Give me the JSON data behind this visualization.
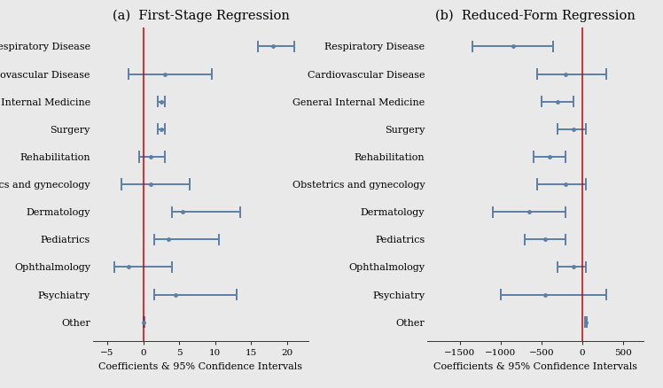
{
  "categories": [
    "Respiratory Disease",
    "Cardiovascular Disease",
    "General Internal Medicine",
    "Surgery",
    "Rehabilitation",
    "Obstetrics and gynecology",
    "Dermatology",
    "Pediatrics",
    "Ophthalmology",
    "Psychiatry",
    "Other"
  ],
  "panel_a": {
    "title": "(a)  First-Stage Regression",
    "xlabel": "Coefficients & 95% Confidence Intervals",
    "xlim": [
      -7,
      23
    ],
    "xticks": [
      -5,
      0,
      5,
      10,
      15,
      20
    ],
    "vline": 0,
    "coefs": [
      18.0,
      3.0,
      2.5,
      2.5,
      1.0,
      1.0,
      5.5,
      3.5,
      -2.0,
      4.5,
      0.1
    ],
    "ci_lo": [
      16.0,
      -2.0,
      2.0,
      2.0,
      -0.5,
      -3.0,
      4.0,
      1.5,
      -4.0,
      1.5,
      0.05
    ],
    "ci_hi": [
      21.0,
      9.5,
      3.0,
      3.0,
      3.0,
      6.5,
      13.5,
      10.5,
      4.0,
      13.0,
      0.15
    ]
  },
  "panel_b": {
    "title": "(b)  Reduced-Form Regression",
    "xlabel": "Coefficients & 95% Confidence Intervals",
    "xlim": [
      -1900,
      750
    ],
    "xticks": [
      -1500,
      -1000,
      -500,
      0,
      500
    ],
    "vline": 0,
    "coefs": [
      -850,
      -200,
      -300,
      -100,
      -400,
      -200,
      -650,
      -450,
      -100,
      -450,
      50
    ],
    "ci_lo": [
      -1350,
      -550,
      -500,
      -300,
      -600,
      -550,
      -1100,
      -700,
      -300,
      -1000,
      40
    ],
    "ci_hi": [
      -350,
      300,
      -100,
      50,
      -200,
      50,
      -200,
      -200,
      50,
      300,
      60
    ]
  },
  "dot_color": "#5b7fa6",
  "line_color": "#5b7fa6",
  "vline_color": "#cc0000",
  "bg_color": "#e9e9e9",
  "title_fontsize": 10.5,
  "label_fontsize": 8.0,
  "tick_fontsize": 7.5,
  "xlabel_fontsize": 8.0
}
